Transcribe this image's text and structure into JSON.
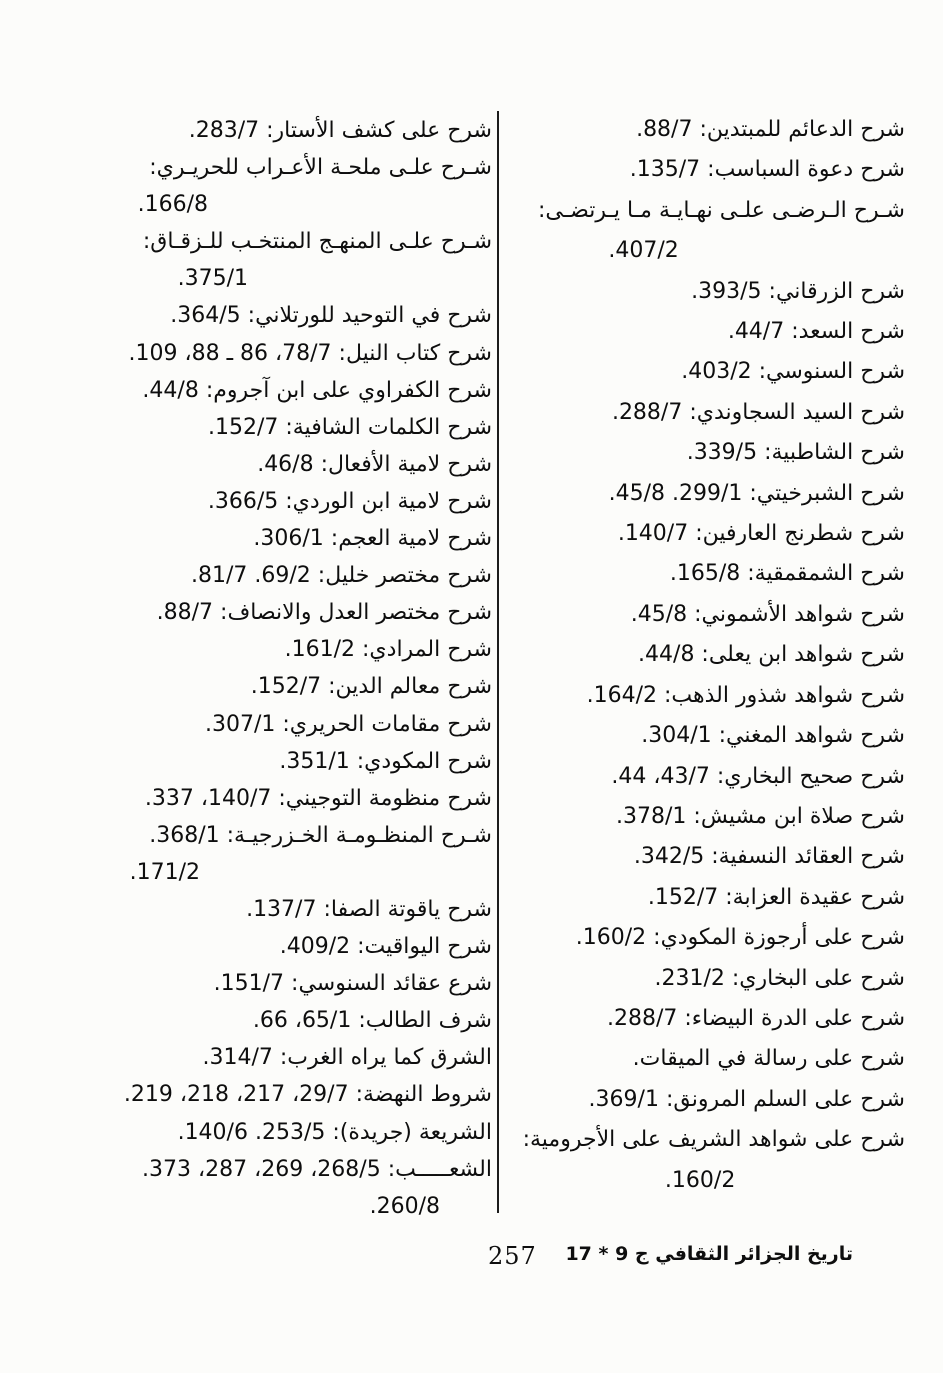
{
  "document": {
    "language": "ar",
    "footer": {
      "page_number": "257",
      "book_title": "تاريخ الجزائر الثقافي ج 9 * 17"
    },
    "columns": {
      "right": {
        "entries": [
          {
            "text": "شرح الدعائم للمبتدين: 88/7."
          },
          {
            "text": "شرح دعوة السباسب: 135/7."
          },
          {
            "text": "شـرح الـرضـى علـى نهـايـة مـا يـرتضـى:",
            "cont": "407/2.",
            "cont_indent_pct": 56
          },
          {
            "text": "شرح الزرقاني: 393/5."
          },
          {
            "text": "شرح السعد: 44/7."
          },
          {
            "text": "شرح السنوسي: 403/2."
          },
          {
            "text": "شرح السيد السجاوندي: 288/7."
          },
          {
            "text": "شرح الشاطبية: 339/5."
          },
          {
            "text": "شرح الشبرخيتي: 299/1. 45/8."
          },
          {
            "text": "شرح شطرنج العارفين: 140/7."
          },
          {
            "text": "شرح الشمقمقية: 165/8."
          },
          {
            "text": "شرح شواهد الأشموني: 45/8."
          },
          {
            "text": "شرح شواهد ابن يعلى: 44/8."
          },
          {
            "text": "شرح شواهد شذور الذهب: 164/2."
          },
          {
            "text": "شرح شواهد المغني: 304/1."
          },
          {
            "text": "شرح صحيح البخاري: 43/7، 44."
          },
          {
            "text": "شرح صلاة ابن مشيش: 378/1."
          },
          {
            "text": "شرح العقائد النسفية: 342/5."
          },
          {
            "text": "شرح عقيدة العزابة: 152/7."
          },
          {
            "text": "شرح على أرجوزة المكودي: 160/2."
          },
          {
            "text": "شرح على البخاري: 231/2."
          },
          {
            "text": "شرح على الدرة البيضاء: 288/7."
          },
          {
            "text": "شرح على رسالة في الميقات."
          },
          {
            "text": "شرح على السلم المرونق: 369/1."
          },
          {
            "text": "شرح على شواهد الشريف على الأجرومية:",
            "cont": "160/2.",
            "cont_indent_pct": 42
          }
        ]
      },
      "left": {
        "entries": [
          {
            "text": "شرح على كشف الأستار: 283/7."
          },
          {
            "text": "شـرح علـى ملحـة الأعـراب للحريـري:",
            "cont": "166/8.",
            "cont_indent_pct": 71
          },
          {
            "text": "شـرح علـى المنهـج المنتخـب للـزقـاق:",
            "cont": "375/1.",
            "cont_indent_pct": 61
          },
          {
            "text": "شرح في التوحيد للورتلاني: 364/5."
          },
          {
            "text": "شرح كتاب النيل: 78/7، 86 ـ 88، 109."
          },
          {
            "text": "شرح الكفراوي على ابن آجروم: 44/8."
          },
          {
            "text": "شرح الكلمات الشافية: 152/7."
          },
          {
            "text": "شرح لامية الأفعال: 46/8."
          },
          {
            "text": "شرح لامية ابن الوردي: 366/5."
          },
          {
            "text": "شرح لامية العجم: 306/1."
          },
          {
            "text": "شرح مختصر خليل: 69/2. 81/7."
          },
          {
            "text": "شرح مختصر العدل والانصاف: 88/7."
          },
          {
            "text": "شرح المرادي: 161/2."
          },
          {
            "text": "شرح معالم الدين: 152/7."
          },
          {
            "text": "شرح مقامات الحريري: 307/1."
          },
          {
            "text": "شرح المكودي: 351/1."
          },
          {
            "text": "شرح منظومة التوجيني: 140/7، 337."
          },
          {
            "text": "شـرح المنظـومـة الخـزرجيـة: 368/1.",
            "cont": "171/2.",
            "cont_indent_pct": 73
          },
          {
            "text": "شرح ياقوتة الصفا: 137/7."
          },
          {
            "text": "شرح اليواقيت: 409/2."
          },
          {
            "text": "شرع عقائد السنوسي: 151/7."
          },
          {
            "text": "شرف الطالب: 65/1، 66."
          },
          {
            "text": "الشرق كما يراه الغرب: 314/7."
          },
          {
            "text": "شروط النهضة: 29/7، 217، 218، 219."
          },
          {
            "text": "الشريعة (جريدة): 253/5. 140/6."
          },
          {
            "text": "الشعـــــب: 268/5، 269، 287، 373.",
            "cont": "260/8.",
            "cont_indent_pct": 13
          }
        ]
      }
    }
  }
}
